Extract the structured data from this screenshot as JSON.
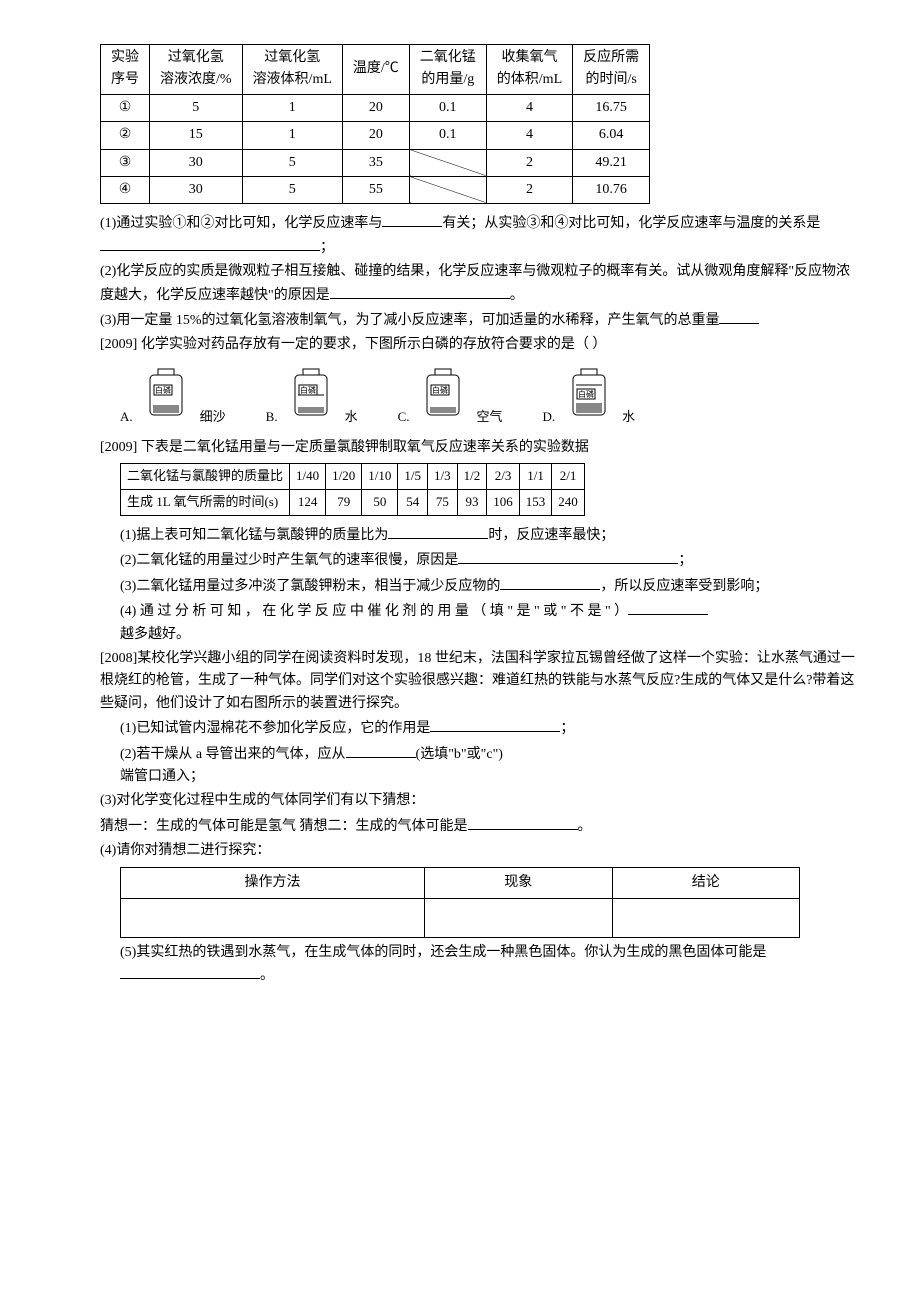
{
  "table1": {
    "headers": [
      "实验\n序号",
      "过氧化氢\n溶液浓度/%",
      "过氧化氢\n溶液体积/mL",
      "温度/℃",
      "二氧化锰\n的用量/g",
      "收集氧气\n的体积/mL",
      "反应所需\n的时间/s"
    ],
    "rows": [
      [
        "①",
        "5",
        "1",
        "20",
        "0.1",
        "4",
        "16.75"
      ],
      [
        "②",
        "15",
        "1",
        "20",
        "0.1",
        "4",
        "6.04"
      ],
      [
        "③",
        "30",
        "5",
        "35",
        "SLASH",
        "2",
        "49.21"
      ],
      [
        "④",
        "30",
        "5",
        "55",
        "SLASH",
        "2",
        "10.76"
      ]
    ]
  },
  "q1": "(1)通过实验①和②对比可知，化学反应速率与",
  "q1b": "有关；从实验③和④对比可知，化学反应速率与温度的关系是",
  "q1c": "；",
  "q2": "(2)化学反应的实质是微观粒子相互接触、碰撞的结果，化学反应速率与微观粒子的概率有关。试从微观角度解释\"反应物浓度越大，化学反应速率越快\"的原因是",
  "q2b": "。",
  "q3": "(3)用一定量 15%的过氧化氢溶液制氧气，为了减小反应速率，可加适量的水稀释，产生氧气的总重量",
  "q2009a": "[2009]  化学实验对药品存放有一定的要求，下图所示白磷的存放符合要求的是（     ）",
  "opts": {
    "A": {
      "label": "白磷",
      "medium": "细沙"
    },
    "B": {
      "label": "白磷",
      "medium": "水"
    },
    "C": {
      "label": "白磷",
      "medium": "空气"
    },
    "D": {
      "label": "白磷",
      "medium": "水"
    }
  },
  "q2009b": "[2009]  下表是二氧化锰用量与一定质量氯酸钾制取氧气反应速率关系的实验数据",
  "table2": {
    "row1_label": "二氧化锰与氯酸钾的质量比",
    "row1": [
      "1/40",
      "1/20",
      "1/10",
      "1/5",
      "1/3",
      "1/2",
      "2/3",
      "1/1",
      "2/1"
    ],
    "row2_label": "生成 1L 氧气所需的时间(s)",
    "row2": [
      "124",
      "79",
      "50",
      "54",
      "75",
      "93",
      "106",
      "153",
      "240"
    ]
  },
  "sub1": "(1)据上表可知二氧化锰与氯酸钾的质量比为",
  "sub1b": "时，反应速率最快；",
  "sub2": "(2)二氧化锰的用量过少时产生氧气的速率很慢，原因是",
  "sub2b": "；",
  "sub3": "(3)二氧化锰用量过多冲淡了氯酸钾粉末，相当于减少反应物的",
  "sub3b": "，所以反应速率受到影响；",
  "sub4a": "(4) 通 过 分 析 可 知 ， 在 化 学 反 应 中 催 化 剂 的 用 量 （ 填 \" 是 \" 或 \" 不 是 \" ）",
  "sub4b": "越多越好。",
  "q2008": "[2008]某校化学兴趣小组的同学在阅读资料时发现，18 世纪末，法国科学家拉瓦锡曾经做了这样一个实验：让水蒸气通过一根烧红的枪管，生成了一种气体。同学们对这个实验很感兴趣：难道红热的铁能与水蒸气反应?生成的气体又是什么?带着这些疑问，他们设计了如右图所示的装置进行探究。",
  "p1": "(1)已知试管内湿棉花不参加化学反应，它的作用是",
  "p1b": "；",
  "p2": "(2)若干燥从 a 导管出来的气体，应从",
  "p2b": "(选填\"b\"或\"c\")",
  "p2c": "端管口通入；",
  "p3": "(3)对化学变化过程中生成的气体同学们有以下猜想：",
  "p3a": "猜想一：生成的气体可能是氢气      猜想二：生成的气体可能是",
  "p3b": "。",
  "p4": "(4)请你对猜想二进行探究：",
  "table3": {
    "h": [
      "操作方法",
      "现象",
      "结论"
    ]
  },
  "p5": "(5)其实红热的铁遇到水蒸气，在生成气体的同时，还会生成一种黑色固体。你认为生成的黑色固体可能是",
  "p5b": "。"
}
